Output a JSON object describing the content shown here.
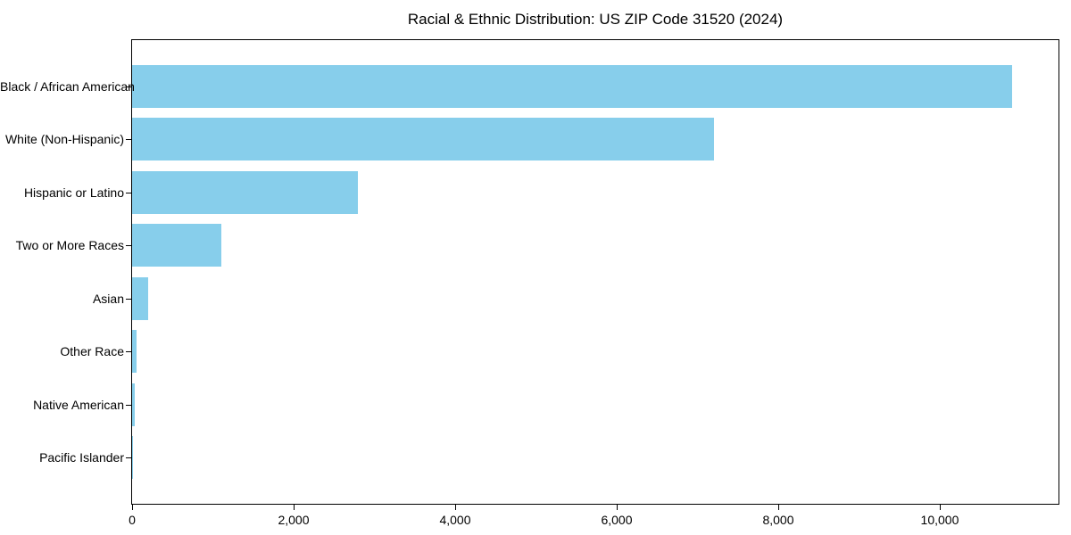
{
  "chart_data": {
    "type": "bar",
    "orientation": "horizontal",
    "title": "Racial & Ethnic Distribution: US ZIP Code 31520 (2024)",
    "categories": [
      "Black / African American",
      "White (Non-Hispanic)",
      "Hispanic or Latino",
      "Two or More Races",
      "Asian",
      "Other Race",
      "Native American",
      "Pacific Islander"
    ],
    "values": [
      10900,
      7200,
      2800,
      1100,
      200,
      50,
      30,
      10
    ],
    "xlabel": "",
    "ylabel": "",
    "xlim": [
      0,
      11470
    ],
    "xticks": [
      0,
      2000,
      4000,
      6000,
      8000,
      10000
    ],
    "xtick_labels": [
      "0",
      "2,000",
      "4,000",
      "6,000",
      "8,000",
      "10,000"
    ],
    "bar_color": "#87CEEB",
    "axis_color": "#000000",
    "text_color": "#000000",
    "background_color": "#ffffff",
    "grid": false,
    "legend": null
  }
}
